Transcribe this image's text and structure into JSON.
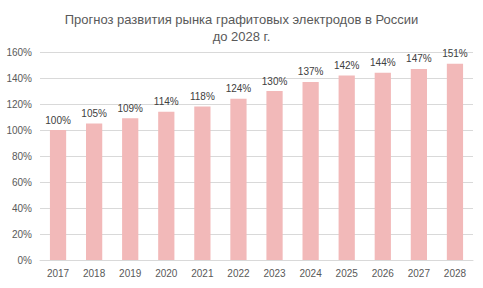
{
  "chart_data": {
    "type": "bar",
    "title": "Прогноз развития рынка графитовых электродов в России\nдо 2028 г.",
    "categories": [
      "2017",
      "2018",
      "2019",
      "2020",
      "2021",
      "2022",
      "2023",
      "2024",
      "2025",
      "2026",
      "2027",
      "2028"
    ],
    "values": [
      100,
      105,
      109,
      114,
      118,
      124,
      130,
      137,
      142,
      144,
      147,
      151
    ],
    "value_labels": [
      "100%",
      "105%",
      "109%",
      "114%",
      "118%",
      "124%",
      "130%",
      "137%",
      "142%",
      "144%",
      "147%",
      "151%"
    ],
    "color": "#f2b9b9",
    "ylim": [
      0,
      160
    ],
    "yticks": [
      {
        "value": 0,
        "label": "0%"
      },
      {
        "value": 20,
        "label": "20%"
      },
      {
        "value": 40,
        "label": "40%"
      },
      {
        "value": 60,
        "label": "60%"
      },
      {
        "value": 80,
        "label": "80%"
      },
      {
        "value": 100,
        "label": "100%"
      },
      {
        "value": 120,
        "label": "120%"
      },
      {
        "value": 140,
        "label": "140%"
      },
      {
        "value": 160,
        "label": "160%"
      }
    ],
    "grid": true,
    "data_labels": true
  }
}
